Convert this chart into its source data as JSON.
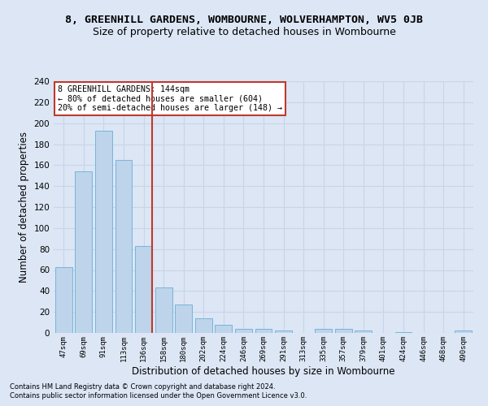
{
  "title_line1": "8, GREENHILL GARDENS, WOMBOURNE, WOLVERHAMPTON, WV5 0JB",
  "title_line2": "Size of property relative to detached houses in Wombourne",
  "xlabel": "Distribution of detached houses by size in Wombourne",
  "ylabel": "Number of detached properties",
  "footer_line1": "Contains HM Land Registry data © Crown copyright and database right 2024.",
  "footer_line2": "Contains public sector information licensed under the Open Government Licence v3.0.",
  "bar_labels": [
    "47sqm",
    "69sqm",
    "91sqm",
    "113sqm",
    "136sqm",
    "158sqm",
    "180sqm",
    "202sqm",
    "224sqm",
    "246sqm",
    "269sqm",
    "291sqm",
    "313sqm",
    "335sqm",
    "357sqm",
    "379sqm",
    "401sqm",
    "424sqm",
    "446sqm",
    "468sqm",
    "490sqm"
  ],
  "bar_values": [
    63,
    154,
    193,
    165,
    83,
    43,
    27,
    14,
    8,
    4,
    4,
    2,
    0,
    4,
    4,
    2,
    0,
    1,
    0,
    0,
    2
  ],
  "bar_color": "#bdd4ea",
  "bar_edge_color": "#6baed6",
  "highlight_index": 4,
  "vline_color": "#c0392b",
  "annotation_text": "8 GREENHILL GARDENS: 144sqm\n← 80% of detached houses are smaller (604)\n20% of semi-detached houses are larger (148) →",
  "annotation_box_color": "#ffffff",
  "annotation_box_edge": "#c0392b",
  "ylim": [
    0,
    240
  ],
  "yticks": [
    0,
    20,
    40,
    60,
    80,
    100,
    120,
    140,
    160,
    180,
    200,
    220,
    240
  ],
  "grid_color": "#c8d4e8",
  "bg_color": "#dce6f5",
  "title1_fontsize": 9.5,
  "title2_fontsize": 9,
  "xlabel_fontsize": 8.5,
  "ylabel_fontsize": 8.5,
  "footer_fontsize": 6.0
}
